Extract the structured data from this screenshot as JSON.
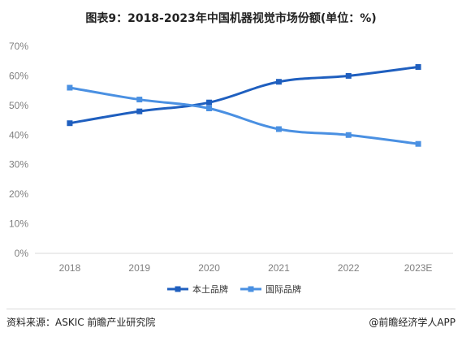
{
  "title": "图表9：2018-2023年中国机器视觉市场份额(单位：%)",
  "footer": {
    "source": "资料来源：ASKIC 前瞻产业研究院",
    "brand": "@前瞻经济学人APP"
  },
  "colors": {
    "domestic": "#1f5fbf",
    "international": "#4a90e2",
    "axis": "#d9d9d9",
    "tick_text": "#7f7f7f"
  },
  "chart_data": {
    "type": "line",
    "title": "图表9：2018-2023年中国机器视觉市场份额(单位：%)",
    "categories": [
      "2018",
      "2019",
      "2020",
      "2021",
      "2022",
      "2023E"
    ],
    "ylim": [
      0,
      70
    ],
    "yticks": [
      0,
      10,
      20,
      30,
      40,
      50,
      60,
      70
    ],
    "ytick_labels": [
      "0%",
      "10%",
      "20%",
      "30%",
      "40%",
      "50%",
      "60%",
      "70%"
    ],
    "grid": false,
    "legend_position": "bottom",
    "series": [
      {
        "name": "本土品牌",
        "values": [
          44,
          48,
          51,
          58,
          60,
          63
        ]
      },
      {
        "name": "国际品牌",
        "values": [
          56,
          52,
          49,
          42,
          40,
          37
        ]
      }
    ]
  }
}
